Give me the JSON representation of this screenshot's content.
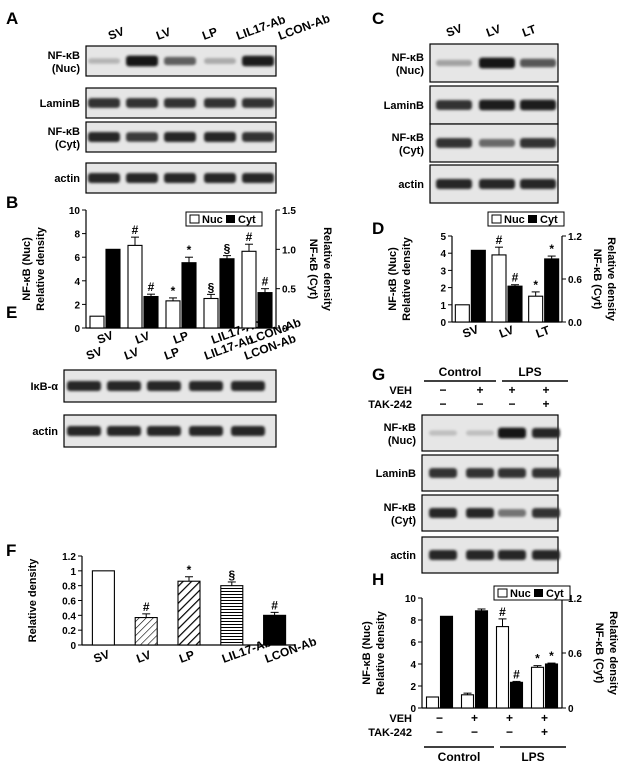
{
  "panels": {
    "A": {
      "label": "A",
      "lanes": [
        "SV",
        "LV",
        "LP",
        "LIL17-Ab",
        "LCON-Ab"
      ],
      "rows": [
        {
          "name": "nfkb-nuc",
          "label1": "NF-κB",
          "label2": "(Nuc)"
        },
        {
          "name": "laminb",
          "label1": "LaminB",
          "label2": ""
        },
        {
          "name": "nfkb-cyt",
          "label1": "NF-κB",
          "label2": "(Cyt)"
        },
        {
          "name": "actin",
          "label1": "actin",
          "label2": ""
        }
      ]
    },
    "C": {
      "label": "C",
      "lanes": [
        "SV",
        "LV",
        "LT"
      ],
      "rows": [
        {
          "name": "nfkb-nuc",
          "label1": "NF-κB",
          "label2": "(Nuc)"
        },
        {
          "name": "laminb",
          "label1": "LaminB",
          "label2": ""
        },
        {
          "name": "nfkb-cyt",
          "label1": "NF-κB",
          "label2": "(Cyt)"
        },
        {
          "name": "actin",
          "label1": "actin",
          "label2": ""
        }
      ]
    },
    "E": {
      "label": "E",
      "lanes": [
        "SV",
        "LV",
        "LP",
        "LIL17-Ab",
        "LCON-Ab"
      ],
      "rows": [
        {
          "name": "ikb-alpha",
          "label1": "IκB-α",
          "label2": ""
        },
        {
          "name": "actin",
          "label1": "actin",
          "label2": ""
        }
      ]
    },
    "G": {
      "label": "G",
      "group_labels": [
        "Control",
        "LPS"
      ],
      "treatments": [
        {
          "label": "VEH",
          "marks": [
            "−",
            "+",
            "+",
            "+"
          ]
        },
        {
          "label": "TAK-242",
          "marks": [
            "−",
            "−",
            "−",
            "+"
          ]
        }
      ],
      "rows": [
        {
          "name": "nfkb-nuc",
          "label1": "NF-κB",
          "label2": "(Nuc)"
        },
        {
          "name": "laminb",
          "label1": "LaminB",
          "label2": ""
        },
        {
          "name": "nfkb-cyt",
          "label1": "NF-κB",
          "label2": "(Cyt)"
        },
        {
          "name": "actin",
          "label1": "actin",
          "label2": ""
        }
      ]
    }
  },
  "chart_data": [
    {
      "panel": "B",
      "type": "bar",
      "categories": [
        "SV",
        "LV",
        "LP",
        "LIL17-Ab",
        "LCON-Ab"
      ],
      "series": [
        {
          "name": "Nuc",
          "axis": "left",
          "color": "#ffffff",
          "values": [
            1.0,
            7.0,
            2.3,
            2.5,
            6.5
          ],
          "errors": [
            0,
            0.7,
            0.25,
            0.35,
            0.6
          ],
          "marks": [
            "",
            "#",
            "*",
            "§",
            "#"
          ]
        },
        {
          "name": "Cyt",
          "axis": "right",
          "color": "#000000",
          "values": [
            1.0,
            0.4,
            0.83,
            0.88,
            0.45
          ],
          "errors": [
            0,
            0.03,
            0.07,
            0.04,
            0.05
          ],
          "marks": [
            "",
            "#",
            "*",
            "§",
            "#"
          ]
        }
      ],
      "ylabel_left": [
        "NF-κB (Nuc)",
        "Relative density"
      ],
      "ylabel_right": [
        "NF-κB (Cyt)",
        "Relative density"
      ],
      "ylim_left": [
        0,
        10
      ],
      "yticks_left": [
        "0",
        "2",
        "4",
        "6",
        "8",
        "10"
      ],
      "ylim_right": [
        0,
        1.5
      ],
      "yticks_right": [
        "0",
        "0.5",
        "1.0",
        "1.5"
      ],
      "legend": [
        "Nuc",
        "Cyt"
      ]
    },
    {
      "panel": "D",
      "type": "bar",
      "categories": [
        "SV",
        "LV",
        "LT"
      ],
      "series": [
        {
          "name": "Nuc",
          "axis": "left",
          "color": "#ffffff",
          "values": [
            1.0,
            3.9,
            1.5
          ],
          "errors": [
            0,
            0.45,
            0.25
          ],
          "marks": [
            "",
            "#",
            "*"
          ]
        },
        {
          "name": "Cyt",
          "axis": "right",
          "color": "#000000",
          "values": [
            1.0,
            0.5,
            0.88
          ],
          "errors": [
            0,
            0.02,
            0.04
          ],
          "marks": [
            "",
            "#",
            "*"
          ]
        }
      ],
      "ylabel_left": [
        "NF-κB (Nuc)",
        "Relative density"
      ],
      "ylabel_right": [
        "NF-κB (Cyt)",
        "Relative density"
      ],
      "ylim_left": [
        0,
        5
      ],
      "yticks_left": [
        "0",
        "1",
        "2",
        "3",
        "4",
        "5"
      ],
      "ylim_right": [
        0,
        1.2
      ],
      "yticks_right": [
        "0.0",
        "0.6",
        "1.2"
      ],
      "legend": [
        "Nuc",
        "Cyt"
      ]
    },
    {
      "panel": "F",
      "type": "bar",
      "categories": [
        "SV",
        "LV",
        "LP",
        "LIL17-Ab",
        "LCON-Ab"
      ],
      "series": [
        {
          "name": "Relative density",
          "values": [
            1.0,
            0.37,
            0.86,
            0.8,
            0.4
          ],
          "errors": [
            0,
            0.05,
            0.06,
            0.05,
            0.04
          ],
          "marks": [
            "",
            "#",
            "*",
            "§",
            "#"
          ],
          "fills": [
            "white",
            "diag-hatch",
            "diag-hatch-thick",
            "horizontal-lines",
            "black"
          ]
        }
      ],
      "ylabel": "Relative density",
      "ylim": [
        0,
        1.2
      ],
      "yticks": [
        "0",
        "0.2",
        "0.4",
        "0.6",
        "0.8",
        "1",
        "1.2"
      ]
    },
    {
      "panel": "H",
      "type": "bar",
      "categories": [
        "Control VEH−",
        "Control VEH+",
        "LPS VEH+",
        "LPS VEH+ TAK-242+"
      ],
      "series": [
        {
          "name": "Nuc",
          "axis": "left",
          "color": "#ffffff",
          "values": [
            1.0,
            1.2,
            7.4,
            3.7
          ],
          "errors": [
            0,
            0.15,
            0.7,
            0.15
          ],
          "marks": [
            "",
            "",
            "#",
            "*"
          ]
        },
        {
          "name": "Cyt",
          "axis": "right",
          "color": "#000000",
          "values": [
            1.0,
            1.06,
            0.28,
            0.48
          ],
          "errors": [
            0,
            0.02,
            0.01,
            0.01
          ],
          "marks": [
            "",
            "",
            "#",
            "*"
          ]
        }
      ],
      "ylabel_left": [
        "NF-κB (Nuc)",
        "Relative density"
      ],
      "ylabel_right": [
        "NF-κB (Cyt)",
        "Relative density"
      ],
      "ylim_left": [
        0,
        10
      ],
      "yticks_left": [
        "0",
        "2",
        "4",
        "6",
        "8",
        "10"
      ],
      "ylim_right": [
        0,
        1.2
      ],
      "yticks_right": [
        "0",
        "0.6",
        "1.2"
      ],
      "legend": [
        "Nuc",
        "Cyt"
      ],
      "treatments": [
        {
          "label": "VEH",
          "marks": [
            "−",
            "+",
            "+",
            "+"
          ]
        },
        {
          "label": "TAK-242",
          "marks": [
            "−",
            "−",
            "−",
            "+"
          ]
        }
      ],
      "group_labels": [
        "Control",
        "LPS"
      ]
    }
  ]
}
